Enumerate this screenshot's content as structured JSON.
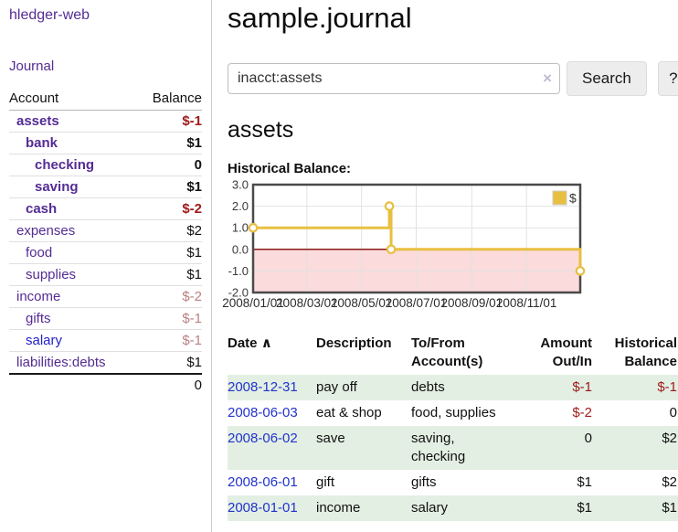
{
  "colors": {
    "link_purple": "#542c94",
    "link_blue": "#2222cc",
    "negative_red": "#9e1a1a",
    "negative_muted": "#bb8080",
    "row_green": "#e3efe3",
    "series_gold": "#e8bf40",
    "zero_line_red": "#8c1717",
    "negative_area_pink": "#fbdbdb",
    "chart_border": "#4a4a4a",
    "grid": "#e2e2e2"
  },
  "sidebar": {
    "brand": "hledger-web",
    "journal_link": "Journal",
    "col_account": "Account",
    "col_balance": "Balance",
    "accounts": [
      {
        "name": "assets",
        "depth": 0,
        "bold": true,
        "blue": false,
        "balance": "$-1",
        "negative": true
      },
      {
        "name": "bank",
        "depth": 1,
        "bold": true,
        "blue": false,
        "balance": "$1",
        "negative": false
      },
      {
        "name": "checking",
        "depth": 2,
        "bold": true,
        "blue": false,
        "balance": "0",
        "negative": false
      },
      {
        "name": "saving",
        "depth": 2,
        "bold": true,
        "blue": false,
        "balance": "$1",
        "negative": false
      },
      {
        "name": "cash",
        "depth": 1,
        "bold": true,
        "blue": false,
        "balance": "$-2",
        "negative": true
      },
      {
        "name": "expenses",
        "depth": 0,
        "bold": false,
        "blue": false,
        "balance": "$2",
        "negative": false
      },
      {
        "name": "food",
        "depth": 1,
        "bold": false,
        "blue": false,
        "balance": "$1",
        "negative": false
      },
      {
        "name": "supplies",
        "depth": 1,
        "bold": false,
        "blue": false,
        "balance": "$1",
        "negative": false
      },
      {
        "name": "income",
        "depth": 0,
        "bold": false,
        "blue": false,
        "balance": "$-2",
        "negative": true
      },
      {
        "name": "gifts",
        "depth": 1,
        "bold": false,
        "blue": false,
        "balance": "$-1",
        "negative": true
      },
      {
        "name": "salary",
        "depth": 1,
        "bold": false,
        "blue": true,
        "balance": "$-1",
        "negative": true
      },
      {
        "name": "liabilities:debts",
        "depth": 0,
        "bold": false,
        "blue": false,
        "balance": "$1",
        "negative": false
      }
    ],
    "total": "0"
  },
  "header": {
    "title": "sample.journal"
  },
  "search": {
    "value": "inacct:assets",
    "clear_icon": "×",
    "button": "Search",
    "help_button": "?"
  },
  "main": {
    "account_heading": "assets",
    "chart_label": "Historical Balance:"
  },
  "chart_data": {
    "type": "line",
    "step": true,
    "title": "Historical Balance:",
    "series": [
      {
        "name": "$",
        "color": "#e8bf40",
        "points": [
          [
            "2008-01-01",
            1.0
          ],
          [
            "2008-06-01",
            2.0
          ],
          [
            "2008-06-03",
            0.0
          ],
          [
            "2008-12-31",
            -1.0
          ]
        ]
      }
    ],
    "x_range": [
      "2008-01-01",
      "2008-12-31"
    ],
    "ylim": [
      -2.0,
      3.0
    ],
    "y_ticks": [
      3.0,
      2.0,
      1.0,
      0.0,
      -1.0,
      -2.0
    ],
    "x_ticks": [
      "2008/01/01",
      "2008/03/01",
      "2008/05/01",
      "2008/07/01",
      "2008/09/01",
      "2008/11/01"
    ],
    "grid": true,
    "legend_position": "top-right",
    "negative_region_shaded": true
  },
  "transactions": {
    "sort_icon": "∧",
    "columns": {
      "date": "Date",
      "description": "Description",
      "accounts": "To/From Account(s)",
      "amount": "Amount Out/In",
      "balance": "Historical Balance"
    },
    "rows": [
      {
        "date": "2008-12-31",
        "description": "pay off",
        "accounts": "debts",
        "amount": "$-1",
        "amount_negative": true,
        "balance": "$-1",
        "balance_negative": true,
        "shaded": true
      },
      {
        "date": "2008-06-03",
        "description": "eat & shop",
        "accounts": "food, supplies",
        "amount": "$-2",
        "amount_negative": true,
        "balance": "0",
        "balance_negative": false,
        "shaded": false
      },
      {
        "date": "2008-06-02",
        "description": "save",
        "accounts": "saving,\nchecking",
        "amount": "0",
        "amount_negative": false,
        "balance": "$2",
        "balance_negative": false,
        "shaded": true
      },
      {
        "date": "2008-06-01",
        "description": "gift",
        "accounts": "gifts",
        "amount": "$1",
        "amount_negative": false,
        "balance": "$2",
        "balance_negative": false,
        "shaded": false
      },
      {
        "date": "2008-01-01",
        "description": "income",
        "accounts": "salary",
        "amount": "$1",
        "amount_negative": false,
        "balance": "$1",
        "balance_negative": false,
        "shaded": true
      }
    ]
  }
}
